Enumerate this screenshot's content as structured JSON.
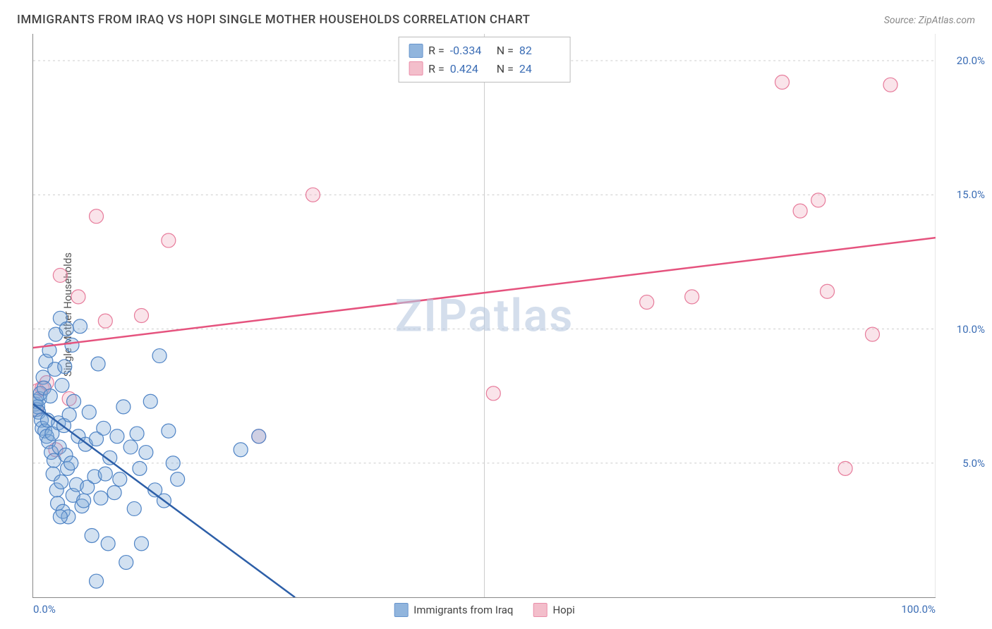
{
  "header": {
    "title": "IMMIGRANTS FROM IRAQ VS HOPI SINGLE MOTHER HOUSEHOLDS CORRELATION CHART",
    "source_prefix": "Source: ",
    "source": "ZipAtlas.com"
  },
  "y_axis_label": "Single Mother Households",
  "watermark": "ZIPatlas",
  "chart": {
    "type": "scatter",
    "xlim": [
      0,
      100
    ],
    "ylim": [
      0,
      21
    ],
    "x_ticks": [
      0,
      50,
      100
    ],
    "x_tick_labels": [
      "0.0%",
      "",
      "100.0%"
    ],
    "y_ticks": [
      5,
      10,
      15,
      20
    ],
    "y_tick_labels": [
      "5.0%",
      "10.0%",
      "15.0%",
      "20.0%"
    ],
    "grid_h_values": [
      5,
      10,
      15,
      20
    ],
    "grid_v_values": [
      50,
      100
    ],
    "background_color": "#ffffff",
    "grid_color": "#cccccc",
    "axis_color": "#888888",
    "tick_label_color": "#3b6db5",
    "marker_radius": 10,
    "marker_stroke_width": 1.2,
    "marker_fill_opacity": 0.35,
    "trend_line_width": 2.5,
    "series": {
      "iraq": {
        "label": "Immigrants from Iraq",
        "fill_color": "#7ea9d8",
        "stroke_color": "#4e83c5",
        "trend_color": "#2d5fa8",
        "trend": {
          "x1": 0,
          "y1": 7.2,
          "x2": 29,
          "y2": 0,
          "dash_after_x": 29,
          "dash_to_x": 45
        },
        "R_label": "R =",
        "R": "-0.334",
        "N_label": "N =",
        "N": "82",
        "points": [
          [
            0.2,
            7.2
          ],
          [
            0.3,
            7.3
          ],
          [
            0.4,
            7.0
          ],
          [
            0.5,
            7.1
          ],
          [
            0.6,
            6.9
          ],
          [
            0.7,
            7.4
          ],
          [
            0.8,
            7.6
          ],
          [
            0.9,
            6.6
          ],
          [
            1.0,
            6.3
          ],
          [
            1.1,
            8.2
          ],
          [
            1.2,
            7.8
          ],
          [
            1.3,
            6.2
          ],
          [
            1.4,
            8.8
          ],
          [
            1.5,
            6.0
          ],
          [
            1.6,
            6.6
          ],
          [
            1.7,
            5.8
          ],
          [
            1.8,
            9.2
          ],
          [
            1.9,
            7.5
          ],
          [
            2.0,
            5.4
          ],
          [
            2.1,
            6.1
          ],
          [
            2.2,
            4.6
          ],
          [
            2.3,
            5.1
          ],
          [
            2.4,
            8.5
          ],
          [
            2.5,
            9.8
          ],
          [
            2.6,
            4.0
          ],
          [
            2.7,
            3.5
          ],
          [
            2.8,
            6.5
          ],
          [
            2.9,
            5.6
          ],
          [
            3.0,
            10.4
          ],
          [
            3.1,
            4.3
          ],
          [
            3.2,
            7.9
          ],
          [
            3.3,
            3.2
          ],
          [
            3.4,
            6.4
          ],
          [
            3.5,
            8.6
          ],
          [
            3.6,
            5.3
          ],
          [
            3.7,
            10.0
          ],
          [
            3.8,
            4.8
          ],
          [
            3.9,
            3.0
          ],
          [
            4.0,
            6.8
          ],
          [
            4.2,
            5.0
          ],
          [
            4.3,
            9.4
          ],
          [
            4.4,
            3.8
          ],
          [
            4.5,
            7.3
          ],
          [
            4.8,
            4.2
          ],
          [
            5.0,
            6.0
          ],
          [
            5.2,
            10.1
          ],
          [
            5.4,
            3.4
          ],
          [
            5.6,
            3.6
          ],
          [
            5.8,
            5.7
          ],
          [
            6.0,
            4.1
          ],
          [
            6.2,
            6.9
          ],
          [
            6.5,
            2.3
          ],
          [
            6.8,
            4.5
          ],
          [
            7.0,
            5.9
          ],
          [
            7.2,
            8.7
          ],
          [
            7.5,
            3.7
          ],
          [
            7.8,
            6.3
          ],
          [
            8.0,
            4.6
          ],
          [
            8.3,
            2.0
          ],
          [
            8.5,
            5.2
          ],
          [
            9.0,
            3.9
          ],
          [
            9.3,
            6.0
          ],
          [
            9.6,
            4.4
          ],
          [
            10.0,
            7.1
          ],
          [
            10.3,
            1.3
          ],
          [
            10.8,
            5.6
          ],
          [
            11.2,
            3.3
          ],
          [
            11.5,
            6.1
          ],
          [
            11.8,
            4.8
          ],
          [
            12.0,
            2.0
          ],
          [
            12.5,
            5.4
          ],
          [
            13.0,
            7.3
          ],
          [
            13.5,
            4.0
          ],
          [
            14.0,
            9.0
          ],
          [
            14.5,
            3.6
          ],
          [
            15.0,
            6.2
          ],
          [
            15.5,
            5.0
          ],
          [
            16.0,
            4.4
          ],
          [
            7.0,
            0.6
          ],
          [
            23.0,
            5.5
          ],
          [
            25.0,
            6.0
          ],
          [
            3.0,
            3.0
          ]
        ]
      },
      "hopi": {
        "label": "Hopi",
        "fill_color": "#f2b3c2",
        "stroke_color": "#e77b9b",
        "trend_color": "#e5537e",
        "trend": {
          "x1": 0,
          "y1": 9.3,
          "x2": 100,
          "y2": 13.4
        },
        "R_label": "R =",
        "R": "0.424",
        "N_label": "N =",
        "N": "24",
        "points": [
          [
            0.5,
            7.7
          ],
          [
            1.0,
            7.8
          ],
          [
            1.5,
            8.0
          ],
          [
            2.5,
            5.5
          ],
          [
            3.0,
            12.0
          ],
          [
            4.0,
            7.4
          ],
          [
            5.0,
            11.2
          ],
          [
            7.0,
            14.2
          ],
          [
            8.0,
            10.3
          ],
          [
            12.0,
            10.5
          ],
          [
            15.0,
            13.3
          ],
          [
            25.0,
            6.0
          ],
          [
            31.0,
            15.0
          ],
          [
            51.0,
            7.6
          ],
          [
            68.0,
            11.0
          ],
          [
            73.0,
            11.2
          ],
          [
            83.0,
            19.2
          ],
          [
            85.0,
            14.4
          ],
          [
            87.0,
            14.8
          ],
          [
            88.0,
            11.4
          ],
          [
            90.0,
            4.8
          ],
          [
            93.0,
            9.8
          ],
          [
            95.0,
            19.1
          ],
          [
            0.3,
            7.0
          ]
        ]
      }
    }
  },
  "legend": {
    "iraq": "Immigrants from Iraq",
    "hopi": "Hopi"
  }
}
